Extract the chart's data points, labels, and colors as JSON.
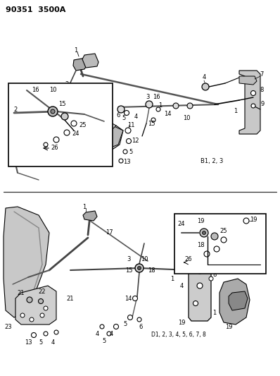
{
  "title_text": "90351  3500A",
  "bg_color": "#ffffff",
  "line_color": "#000000",
  "upper_label": "B1, 2, 3",
  "lower_label": "D1, 2, 3, 4, 5, 6, 7, 8",
  "fig_width": 3.98,
  "fig_height": 5.33,
  "dpi": 100
}
